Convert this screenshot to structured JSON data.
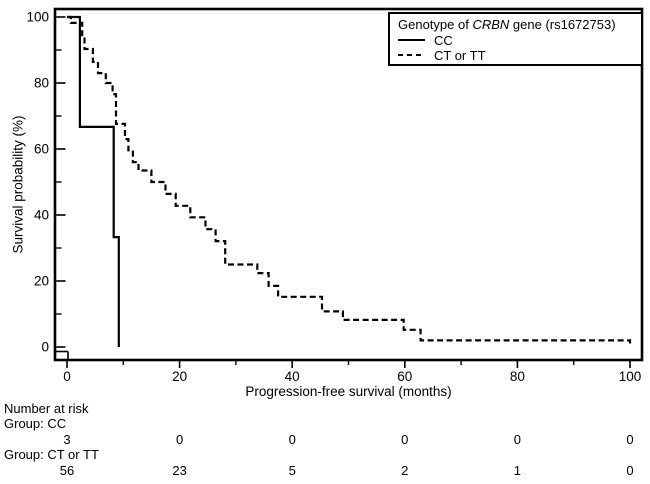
{
  "figure": {
    "background": "#ffffff",
    "ink": "#000000"
  },
  "chart_data": {
    "type": "line",
    "subtype": "kaplan-meier-step",
    "title": "",
    "xlabel": "Progression-free survival (months)",
    "ylabel": "Survival probability (%)",
    "xlim": [
      0,
      100
    ],
    "ylim": [
      0,
      100
    ],
    "x_major_ticks": [
      0,
      20,
      40,
      60,
      80,
      100
    ],
    "x_minor_ticks": [
      10,
      30,
      50,
      70,
      90
    ],
    "y_major_ticks": [
      0,
      20,
      40,
      60,
      80,
      100
    ],
    "y_minor_ticks": [
      10,
      30,
      50,
      70,
      90
    ],
    "grid": "off",
    "legend_position": "top-right",
    "series": [
      {
        "name": "CC",
        "style": "solid",
        "steps": [
          [
            0,
            100
          ],
          [
            2.3,
            66.7
          ],
          [
            8.3,
            33.3
          ],
          [
            9.2,
            0
          ]
        ]
      },
      {
        "name": "CT or TT",
        "style": "dashed",
        "steps": [
          [
            0,
            100
          ],
          [
            0.7,
            98.2
          ],
          [
            2.7,
            94.5
          ],
          [
            3.1,
            90.3
          ],
          [
            4.6,
            86.4
          ],
          [
            5.5,
            83
          ],
          [
            6.9,
            80
          ],
          [
            8.1,
            76.6
          ],
          [
            8.7,
            67.6
          ],
          [
            10.3,
            63
          ],
          [
            10.9,
            59.6
          ],
          [
            11.7,
            56
          ],
          [
            12.7,
            53.5
          ],
          [
            15,
            50
          ],
          [
            17.5,
            46.4
          ],
          [
            19.3,
            42.8
          ],
          [
            21.9,
            39.3
          ],
          [
            24.6,
            35.7
          ],
          [
            26.4,
            32.1
          ],
          [
            28.1,
            25
          ],
          [
            33.8,
            22.4
          ],
          [
            35.8,
            18.5
          ],
          [
            37.5,
            15.2
          ],
          [
            45.3,
            10.8
          ],
          [
            49,
            8.2
          ],
          [
            59.8,
            5.2
          ],
          [
            62.8,
            2
          ],
          [
            100,
            0
          ]
        ]
      }
    ]
  },
  "legend": {
    "title_prefix": "Genotype of ",
    "gene": "CRBN",
    "title_suffix": " gene (rs1672753)",
    "items": [
      {
        "label": "CC",
        "line": "solid"
      },
      {
        "label": "CT or TT",
        "line": "dashed"
      }
    ]
  },
  "risk_table": {
    "header": "Number at risk",
    "months": [
      0,
      20,
      40,
      60,
      80,
      100
    ],
    "groups": [
      {
        "label": "Group: CC",
        "counts": [
          "3",
          "0",
          "0",
          "0",
          "0",
          "0"
        ]
      },
      {
        "label": "Group: CT or TT",
        "counts": [
          "56",
          "23",
          "5",
          "2",
          "1",
          "0"
        ]
      }
    ]
  }
}
